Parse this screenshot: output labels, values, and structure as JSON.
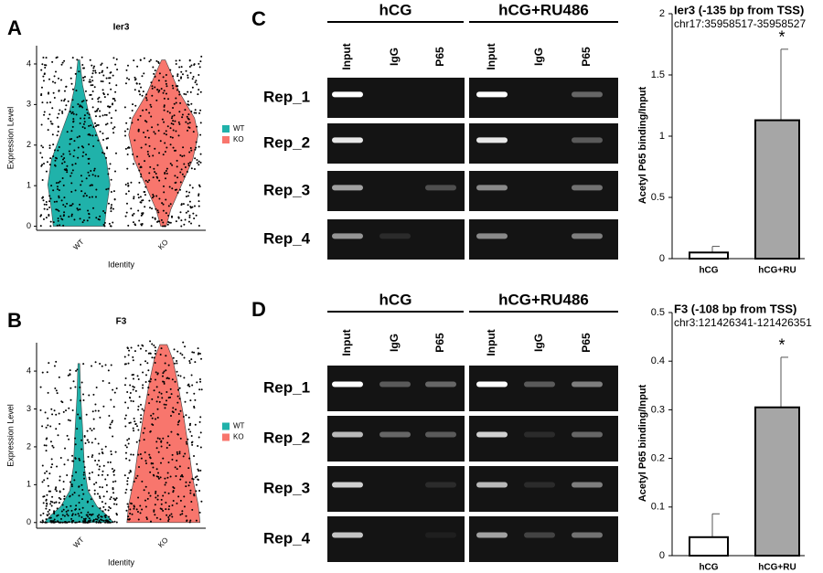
{
  "panel_labels": [
    "A",
    "B",
    "C",
    "D"
  ],
  "chart_data": [
    {
      "type": "violin",
      "title": "Ier3",
      "x_label": "Identity",
      "y_label": "Expression Level",
      "categories": [
        "WT",
        "KO"
      ],
      "series": [
        {
          "name": "WT",
          "color": "#20b2aa"
        },
        {
          "name": "KO",
          "color": "#f8766d"
        }
      ],
      "ylim": [
        -0.1,
        4.45
      ],
      "yticks": [
        0,
        1,
        2,
        3,
        4
      ],
      "legend": "right"
    },
    {
      "type": "violin",
      "title": "F3",
      "x_label": "Identity",
      "y_label": "Expression Level",
      "categories": [
        "WT",
        "KO"
      ],
      "series": [
        {
          "name": "WT",
          "color": "#20b2aa"
        },
        {
          "name": "KO",
          "color": "#f8766d"
        }
      ],
      "ylim": [
        -0.15,
        4.75
      ],
      "yticks": [
        0,
        1,
        2,
        3,
        4
      ],
      "legend": "right"
    },
    {
      "type": "bar",
      "title": "Ier3 (-135 bp from TSS)",
      "subtitle": "chr17:35958517-35958527",
      "y_label": "Acetyl P65 binding/Input",
      "categories": [
        "hCG",
        "hCG+RU"
      ],
      "values": [
        0.05,
        1.13
      ],
      "errors": [
        0.05,
        0.58
      ],
      "colors": [
        "#ffffff",
        "#a6a6a6"
      ],
      "ylim": [
        0,
        2
      ],
      "yticks": [
        0,
        0.5,
        1,
        1.5,
        2
      ],
      "annotation": "*"
    },
    {
      "type": "bar",
      "title": "F3 (-108 bp from TSS)",
      "subtitle": "chr3:121426341-121426351",
      "y_label": "Acetyl P65 binding/Input",
      "categories": [
        "hCG",
        "hCG+RU"
      ],
      "values": [
        0.038,
        0.305
      ],
      "errors": [
        0.048,
        0.103
      ],
      "colors": [
        "#ffffff",
        "#a6a6a6"
      ],
      "ylim": [
        0,
        0.5
      ],
      "yticks": [
        0,
        0.1,
        0.2,
        0.3,
        0.4,
        0.5
      ],
      "annotation": "*"
    }
  ],
  "gels": [
    {
      "groups": [
        "hCG",
        "hCG+RU486"
      ],
      "lanes": [
        "Input",
        "IgG",
        "P65",
        "Input",
        "IgG",
        "P65"
      ],
      "rows": [
        "Rep_1",
        "Rep_2",
        "Rep_3",
        "Rep_4"
      ]
    },
    {
      "groups": [
        "hCG",
        "hCG+RU486"
      ],
      "lanes": [
        "Input",
        "IgG",
        "P65",
        "Input",
        "IgG",
        "P65"
      ],
      "rows": [
        "Rep_1",
        "Rep_2",
        "Rep_3",
        "Rep_4"
      ]
    }
  ]
}
